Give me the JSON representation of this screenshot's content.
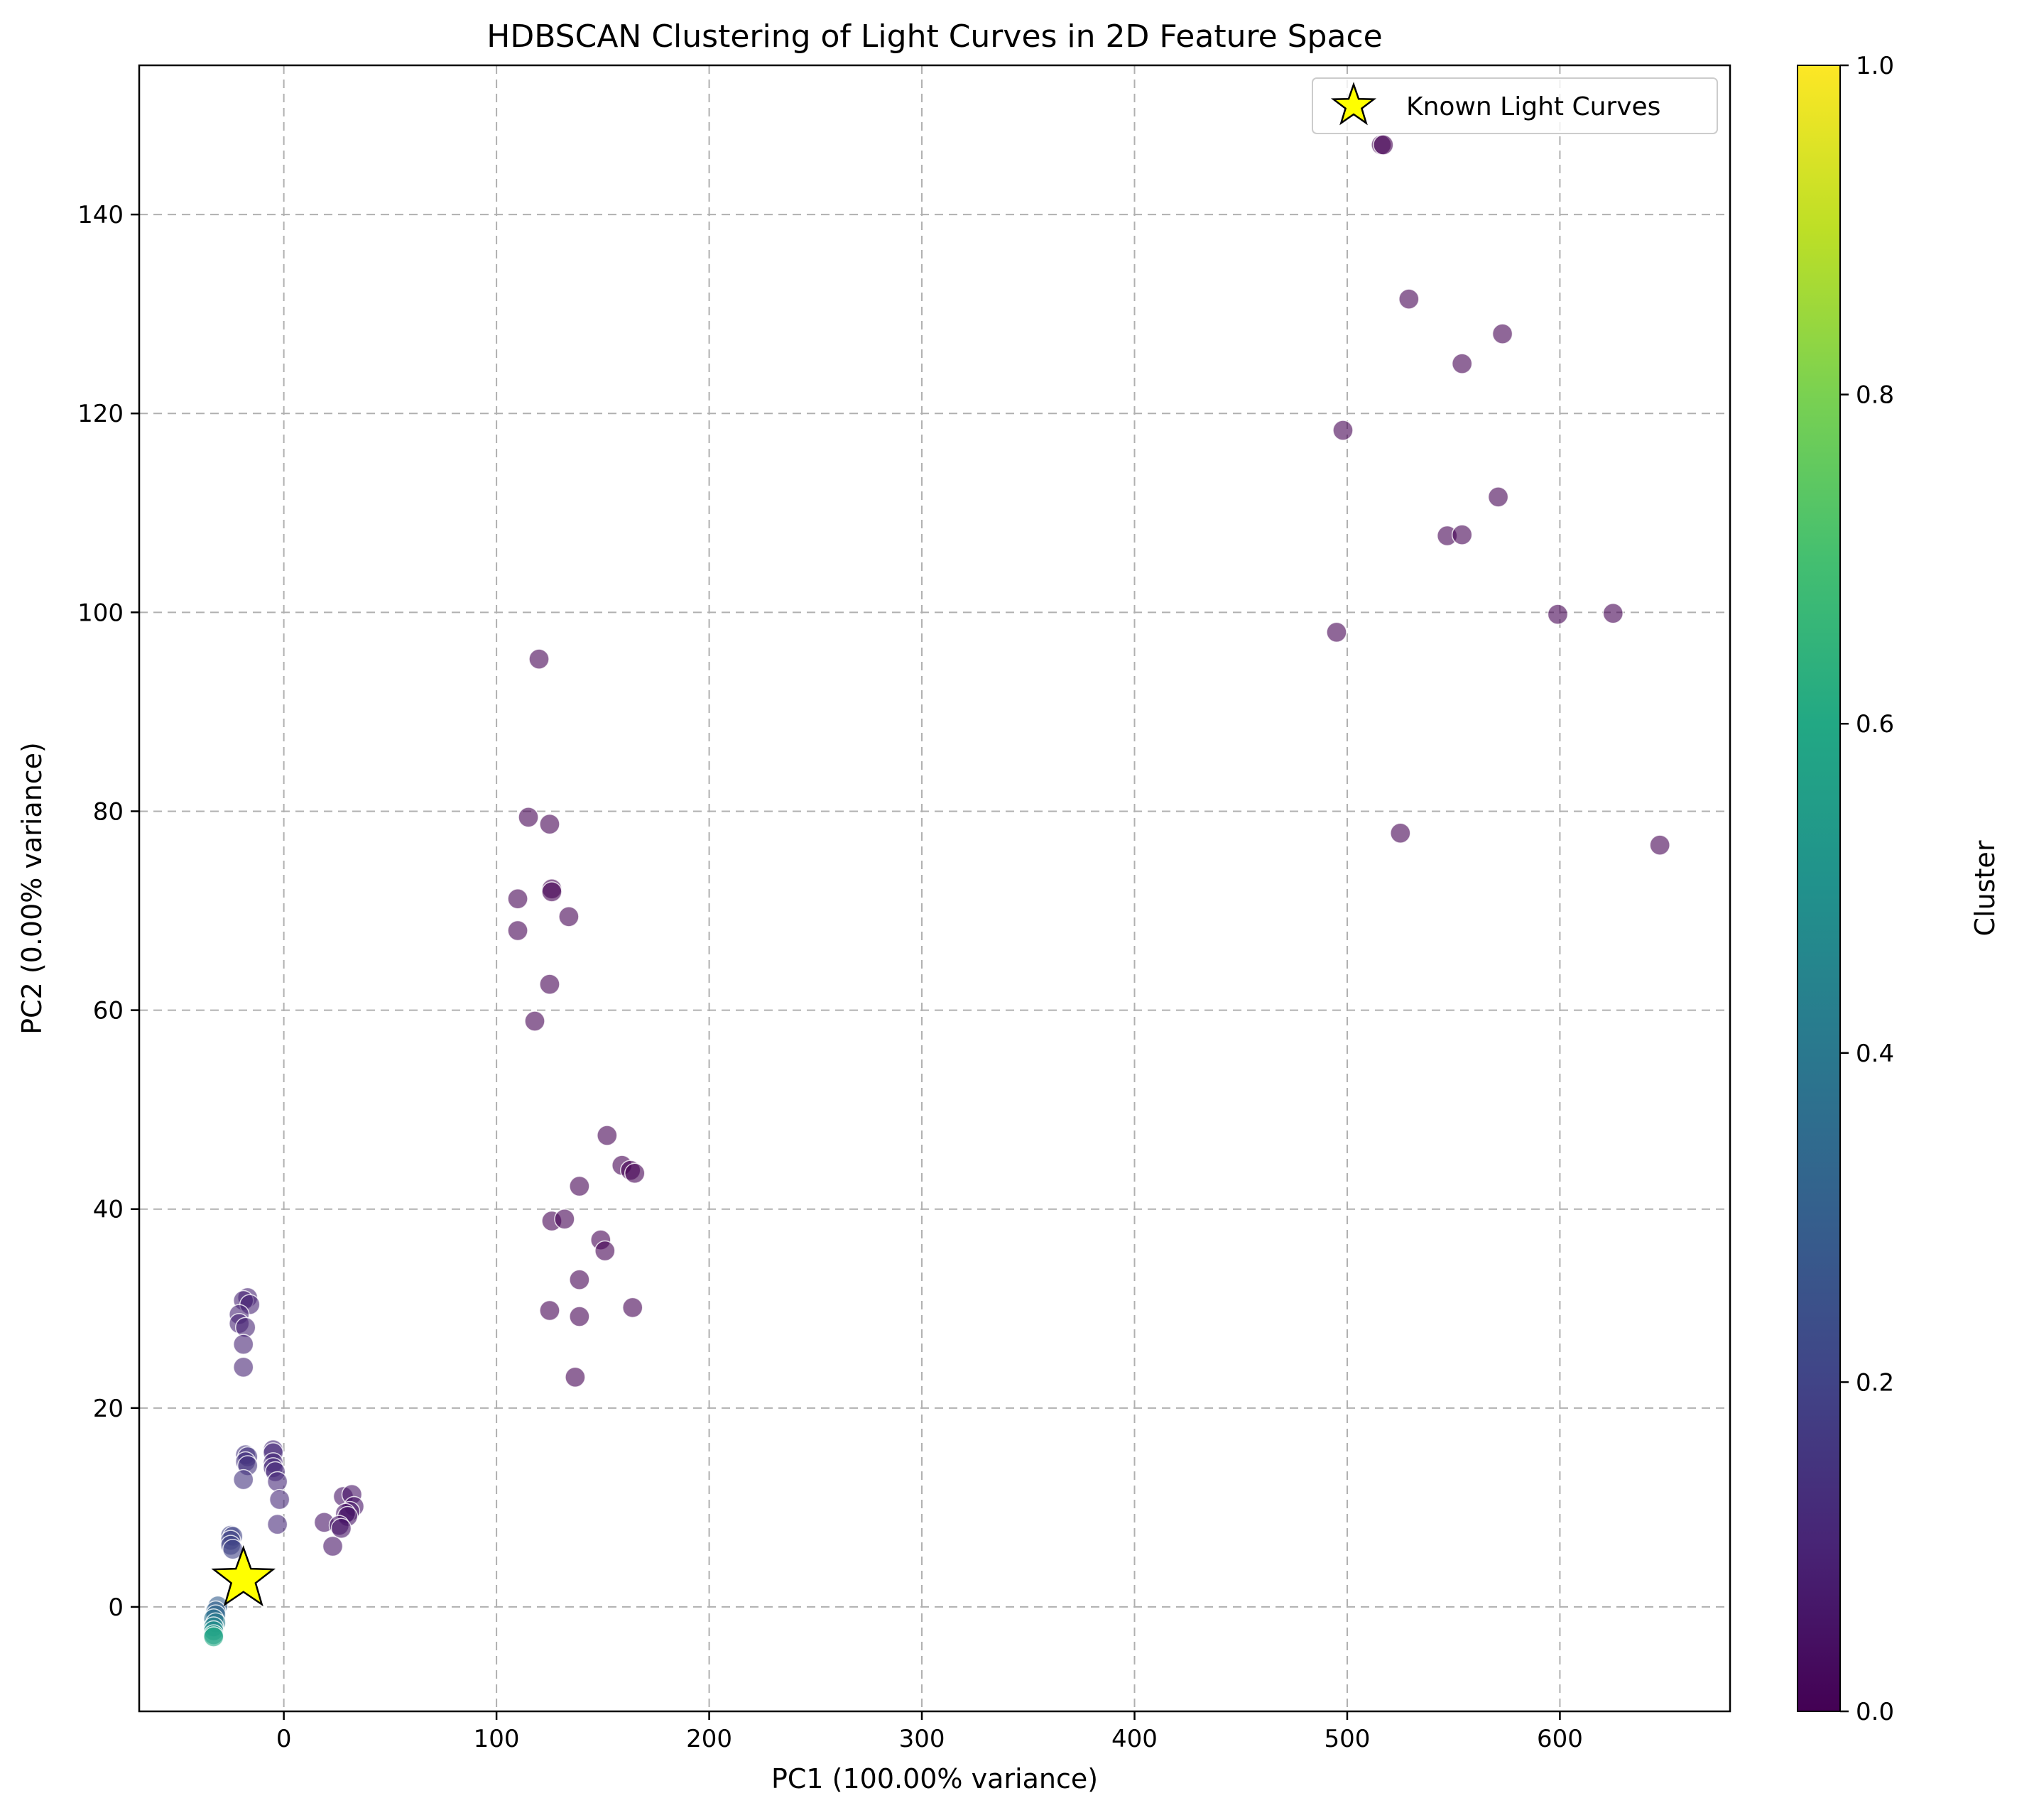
{
  "chart_data": {
    "type": "scatter",
    "title": "HDBSCAN Clustering of Light Curves in 2D Feature Space",
    "xlabel": "PC1 (100.00% variance)",
    "ylabel": "PC2 (0.00% variance)",
    "xlim": [
      -68,
      680
    ],
    "ylim": [
      -10.5,
      155
    ],
    "xticks": [
      0,
      100,
      200,
      300,
      400,
      500,
      600
    ],
    "yticks": [
      0,
      20,
      40,
      60,
      80,
      100,
      120,
      140
    ],
    "grid": true,
    "legend": {
      "placement": "top-right",
      "entries": [
        {
          "label": "Known Light Curves",
          "marker": "star",
          "color": "#ffff00"
        }
      ]
    },
    "colorbar": {
      "label": "Cluster",
      "min": 0.0,
      "max": 1.0,
      "ticks": [
        "0.0",
        "0.2",
        "0.4",
        "0.6",
        "0.8",
        "1.0"
      ],
      "colormap": "viridis"
    },
    "point_opacity": 0.6,
    "series": [
      {
        "marker": "circle",
        "points": [
          {
            "x": 516,
            "y": 147,
            "c": 0.0
          },
          {
            "x": 517,
            "y": 147,
            "c": 0.0
          },
          {
            "x": 529,
            "y": 131.5,
            "c": 0.0
          },
          {
            "x": 573,
            "y": 128,
            "c": 0.0
          },
          {
            "x": 554,
            "y": 125,
            "c": 0.0
          },
          {
            "x": 498,
            "y": 118.3,
            "c": 0.0
          },
          {
            "x": 571,
            "y": 111.6,
            "c": 0.0
          },
          {
            "x": 547,
            "y": 107.7,
            "c": 0.0
          },
          {
            "x": 554,
            "y": 107.8,
            "c": 0.0
          },
          {
            "x": 599,
            "y": 99.8,
            "c": 0.0
          },
          {
            "x": 625,
            "y": 99.9,
            "c": 0.0
          },
          {
            "x": 495,
            "y": 98,
            "c": 0.0
          },
          {
            "x": 525,
            "y": 77.8,
            "c": 0.0
          },
          {
            "x": 647,
            "y": 76.6,
            "c": 0.0
          },
          {
            "x": 120,
            "y": 95.3,
            "c": 0.0
          },
          {
            "x": 115,
            "y": 79.4,
            "c": 0.0
          },
          {
            "x": 125,
            "y": 78.7,
            "c": 0.0
          },
          {
            "x": 110,
            "y": 71.2,
            "c": 0.0
          },
          {
            "x": 126,
            "y": 72.2,
            "c": 0.0
          },
          {
            "x": 126,
            "y": 71.9,
            "c": 0.0
          },
          {
            "x": 110,
            "y": 68,
            "c": 0.0
          },
          {
            "x": 134,
            "y": 69.4,
            "c": 0.0
          },
          {
            "x": 125,
            "y": 62.6,
            "c": 0.0
          },
          {
            "x": 118,
            "y": 58.9,
            "c": 0.0
          },
          {
            "x": 152,
            "y": 47.4,
            "c": 0.0
          },
          {
            "x": 159,
            "y": 44.4,
            "c": 0.0
          },
          {
            "x": 163,
            "y": 43.9,
            "c": 0.0
          },
          {
            "x": 165,
            "y": 43.6,
            "c": 0.0
          },
          {
            "x": 139,
            "y": 42.3,
            "c": 0.0
          },
          {
            "x": 126,
            "y": 38.8,
            "c": 0.0
          },
          {
            "x": 132,
            "y": 39,
            "c": 0.0
          },
          {
            "x": 149,
            "y": 36.9,
            "c": 0.0
          },
          {
            "x": 151,
            "y": 35.8,
            "c": 0.0
          },
          {
            "x": 139,
            "y": 32.9,
            "c": 0.0
          },
          {
            "x": 125,
            "y": 29.8,
            "c": 0.0
          },
          {
            "x": 139,
            "y": 29.2,
            "c": 0.0
          },
          {
            "x": 164,
            "y": 30.1,
            "c": 0.0
          },
          {
            "x": 137,
            "y": 23.1,
            "c": 0.0
          },
          {
            "x": -17,
            "y": 31.1,
            "c": 0.1
          },
          {
            "x": -19,
            "y": 30.8,
            "c": 0.1
          },
          {
            "x": -16,
            "y": 30.4,
            "c": 0.1
          },
          {
            "x": -21,
            "y": 29.4,
            "c": 0.1
          },
          {
            "x": -21,
            "y": 28.5,
            "c": 0.1
          },
          {
            "x": -18,
            "y": 28.1,
            "c": 0.1
          },
          {
            "x": -19,
            "y": 26.4,
            "c": 0.1
          },
          {
            "x": -19,
            "y": 24.1,
            "c": 0.1
          },
          {
            "x": -5,
            "y": 15.8,
            "c": 0.12
          },
          {
            "x": -5,
            "y": 15.5,
            "c": 0.12
          },
          {
            "x": -5,
            "y": 14.5,
            "c": 0.12
          },
          {
            "x": -5,
            "y": 14,
            "c": 0.12
          },
          {
            "x": -4,
            "y": 13.6,
            "c": 0.12
          },
          {
            "x": -3,
            "y": 12.6,
            "c": 0.12
          },
          {
            "x": -2,
            "y": 10.8,
            "c": 0.12
          },
          {
            "x": -3,
            "y": 8.3,
            "c": 0.12
          },
          {
            "x": -18,
            "y": 15.3,
            "c": 0.15
          },
          {
            "x": -17,
            "y": 15.1,
            "c": 0.15
          },
          {
            "x": -18,
            "y": 14.6,
            "c": 0.15
          },
          {
            "x": -17,
            "y": 14.2,
            "c": 0.15
          },
          {
            "x": -19,
            "y": 12.8,
            "c": 0.15
          },
          {
            "x": 28,
            "y": 11.1,
            "c": 0.05
          },
          {
            "x": 32,
            "y": 11.3,
            "c": 0.05
          },
          {
            "x": 33,
            "y": 10.1,
            "c": 0.05
          },
          {
            "x": 31,
            "y": 9.6,
            "c": 0.05
          },
          {
            "x": 29,
            "y": 9.4,
            "c": 0.05
          },
          {
            "x": 30,
            "y": 9.1,
            "c": 0.05
          },
          {
            "x": 19,
            "y": 8.5,
            "c": 0.05
          },
          {
            "x": 26,
            "y": 8.2,
            "c": 0.05
          },
          {
            "x": 27,
            "y": 7.9,
            "c": 0.05
          },
          {
            "x": 23,
            "y": 6.1,
            "c": 0.05
          },
          {
            "x": -25,
            "y": 7.2,
            "c": 0.2
          },
          {
            "x": -24,
            "y": 7.1,
            "c": 0.2
          },
          {
            "x": -25,
            "y": 6.7,
            "c": 0.2
          },
          {
            "x": -25,
            "y": 6.2,
            "c": 0.2
          },
          {
            "x": -24,
            "y": 5.8,
            "c": 0.2
          },
          {
            "x": -31,
            "y": 0.1,
            "c": 0.3
          },
          {
            "x": -32,
            "y": -0.4,
            "c": 0.32
          },
          {
            "x": -32,
            "y": -0.8,
            "c": 0.34
          },
          {
            "x": -33,
            "y": -1.2,
            "c": 0.38
          },
          {
            "x": -32,
            "y": -1.6,
            "c": 0.42
          },
          {
            "x": -33,
            "y": -2.0,
            "c": 0.46
          },
          {
            "x": -33,
            "y": -2.4,
            "c": 0.5
          },
          {
            "x": -33,
            "y": -2.8,
            "c": 0.55
          },
          {
            "x": -33,
            "y": -3.0,
            "c": 0.6
          }
        ]
      },
      {
        "name": "Known Light Curves",
        "marker": "star",
        "color": "#ffff00",
        "points": [
          {
            "x": -19,
            "y": 2.8
          }
        ]
      }
    ]
  }
}
